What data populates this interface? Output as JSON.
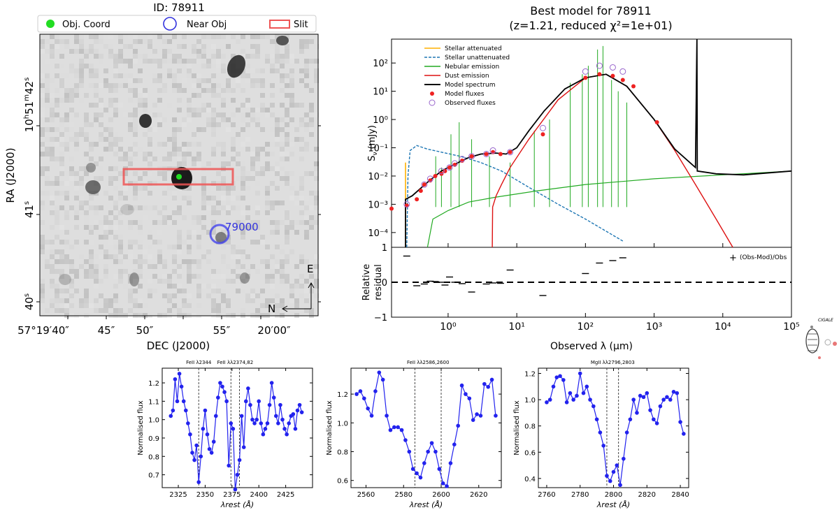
{
  "image_panel": {
    "id_label": "ID: 78911",
    "legend": [
      "Obj. Coord",
      "Near Obj",
      "Slit"
    ],
    "near_obj_label": "79000",
    "ra_ticks": [
      "42",
      "41",
      "40"
    ],
    "dec_ticks": [
      "57°19′40″",
      "45″",
      "50″",
      "55″",
      "20′00″"
    ],
    "xlabel": "DEC (J2000)",
    "ylabel": "RA (J2000)",
    "compass_e": "E",
    "compass_n": "N",
    "colors": {
      "obj": "#22dd22",
      "near": "#3333dd",
      "slit": "#ee5555"
    }
  },
  "sed_panel": {
    "title_line1": "Best model for 78911",
    "title_line2": "(z=1.21, reduced χ²=1e+01)",
    "ylabel": "S",
    "ylabel_sub": "ν",
    "ylabel_unit": " (mJy)",
    "xlabel": "Observed λ (μm)",
    "residual_label_1": "Relative",
    "residual_label_2": "residual",
    "residual_legend": "(Obs-Mod)/Obs",
    "legend": [
      {
        "label": "Stellar attenuated",
        "color": "#ffb000",
        "style": "solid"
      },
      {
        "label": "Stellar unattenuated",
        "color": "#1f77b4",
        "style": "dashed"
      },
      {
        "label": "Nebular emission",
        "color": "#22aa22",
        "style": "solid"
      },
      {
        "label": "Dust emission",
        "color": "#dd1111",
        "style": "solid"
      },
      {
        "label": "Model spectrum",
        "color": "#000000",
        "style": "solid"
      },
      {
        "label": "Model fluxes",
        "color": "#ee2222",
        "style": "dot"
      },
      {
        "label": "Observed fluxes",
        "color": "#9966cc",
        "style": "circle"
      }
    ],
    "x_ticks": [
      "10⁰",
      "10¹",
      "10²",
      "10³",
      "10⁴",
      "10⁵"
    ],
    "y_ticks": [
      "10²",
      "10¹",
      "10⁰",
      "10⁻¹",
      "10⁻²",
      "10⁻³",
      "10⁻⁴"
    ],
    "res_ticks": [
      "1",
      "0",
      "−1"
    ],
    "logo_text": "CIGALE"
  },
  "chart_data": [
    {
      "type": "scatter",
      "title": "Best model for 78911 (z=1.21, reduced χ²=1e+01)",
      "xlabel": "Observed λ (μm)",
      "ylabel": "Sν (mJy)",
      "xscale": "log",
      "yscale": "log",
      "xlim": [
        0.15,
        100000
      ],
      "ylim": [
        3e-05,
        700
      ],
      "series": [
        {
          "name": "Model fluxes",
          "x": [
            0.15,
            0.25,
            0.35,
            0.4,
            0.45,
            0.55,
            0.65,
            0.8,
            0.9,
            1.05,
            1.25,
            1.6,
            2.2,
            3.6,
            4.5,
            5.8,
            8.0,
            24,
            100,
            160,
            250,
            350,
            500,
            1100
          ],
          "y": [
            0.0007,
            0.0009,
            0.0015,
            0.003,
            0.005,
            0.007,
            0.01,
            0.012,
            0.015,
            0.02,
            0.025,
            0.035,
            0.05,
            0.06,
            0.07,
            0.06,
            0.07,
            0.3,
            30,
            40,
            35,
            25,
            15,
            0.8
          ]
        },
        {
          "name": "Observed fluxes",
          "x": [
            0.25,
            0.45,
            0.55,
            0.8,
            1.05,
            1.25,
            1.6,
            2.2,
            3.6,
            4.5,
            8.0,
            24,
            100,
            160,
            250,
            350
          ],
          "y": [
            0.001,
            0.005,
            0.008,
            0.015,
            0.02,
            0.028,
            0.04,
            0.05,
            0.06,
            0.08,
            0.07,
            0.5,
            50,
            80,
            70,
            50
          ]
        }
      ],
      "residual": {
        "ylabel": "Relative residual",
        "ylim": [
          -1,
          1
        ],
        "x": [
          0.25,
          0.35,
          0.45,
          0.55,
          0.65,
          0.8,
          0.9,
          1.05,
          1.25,
          1.6,
          2.2,
          3.6,
          4.5,
          5.8,
          8.0,
          24,
          100,
          160,
          250,
          350
        ],
        "y": [
          0.75,
          -0.1,
          -0.05,
          0.03,
          0.02,
          0.0,
          -0.08,
          0.15,
          0.0,
          -0.04,
          -0.28,
          -0.05,
          -0.02,
          -0.03,
          0.35,
          -0.38,
          0.25,
          0.55,
          0.62,
          0.7
        ]
      }
    },
    {
      "type": "line",
      "title": "FeII λ2344   FeII λλ2374,82",
      "xlabel": "λrest (Å)",
      "ylabel": "Normalised flux",
      "xlim": [
        2310,
        2450
      ],
      "ylim": [
        0.63,
        1.28
      ],
      "x_ticks": [
        2325,
        2350,
        2375,
        2400,
        2425
      ],
      "y_ticks": [
        0.7,
        0.8,
        0.9,
        1.0,
        1.1,
        1.2
      ],
      "markers": [
        2344,
        2374,
        2382
      ],
      "series": [
        {
          "x": [
            2318,
            2320,
            2322,
            2324,
            2326,
            2328,
            2330,
            2332,
            2334,
            2336,
            2338,
            2340,
            2342,
            2344,
            2346,
            2348,
            2350,
            2352,
            2354,
            2356,
            2358,
            2360,
            2362,
            2364,
            2366,
            2368,
            2370,
            2372,
            2374,
            2376,
            2378,
            2380,
            2382,
            2384,
            2386,
            2388,
            2390,
            2392,
            2394,
            2396,
            2398,
            2400,
            2402,
            2404,
            2406,
            2408,
            2410,
            2412,
            2414,
            2416,
            2418,
            2420,
            2422,
            2424,
            2426,
            2428,
            2430,
            2432,
            2434,
            2436,
            2438,
            2440
          ],
          "y": [
            1.02,
            1.05,
            1.22,
            1.1,
            1.25,
            1.18,
            1.1,
            1.05,
            0.98,
            0.92,
            0.82,
            0.78,
            0.86,
            0.66,
            0.8,
            0.95,
            1.05,
            0.92,
            0.84,
            0.82,
            0.88,
            1.02,
            1.12,
            1.2,
            1.18,
            1.15,
            1.1,
            0.75,
            0.98,
            0.95,
            0.62,
            0.7,
            0.78,
            1.02,
            0.85,
            1.1,
            1.17,
            1.08,
            1.0,
            0.98,
            1.0,
            1.1,
            0.98,
            0.92,
            0.95,
            0.98,
            1.08,
            1.2,
            1.12,
            1.02,
            0.98,
            1.08,
            1.0,
            0.95,
            0.92,
            0.98,
            1.02,
            1.03,
            0.95,
            1.05,
            1.08,
            1.04
          ]
        }
      ]
    },
    {
      "type": "line",
      "title": "FeII λλ2586,2600",
      "xlabel": "λrest (Å)",
      "ylabel": "Normalised flux",
      "xlim": [
        2552,
        2632
      ],
      "ylim": [
        0.55,
        1.38
      ],
      "x_ticks": [
        2560,
        2580,
        2600,
        2620
      ],
      "y_ticks": [
        0.6,
        0.8,
        1.0,
        1.2
      ],
      "markers": [
        2586,
        2600
      ],
      "series": [
        {
          "x": [
            2555,
            2557,
            2559,
            2561,
            2563,
            2565,
            2567,
            2569,
            2571,
            2573,
            2575,
            2577,
            2579,
            2581,
            2583,
            2585,
            2587,
            2589,
            2591,
            2593,
            2595,
            2597,
            2599,
            2601,
            2603,
            2605,
            2607,
            2609,
            2611,
            2613,
            2615,
            2617,
            2619,
            2621,
            2623,
            2625,
            2627,
            2629
          ],
          "y": [
            1.2,
            1.22,
            1.17,
            1.1,
            1.05,
            1.22,
            1.35,
            1.3,
            1.05,
            0.95,
            0.97,
            0.97,
            0.95,
            0.88,
            0.8,
            0.68,
            0.65,
            0.62,
            0.72,
            0.8,
            0.86,
            0.8,
            0.68,
            0.58,
            0.56,
            0.72,
            0.85,
            0.98,
            1.26,
            1.2,
            1.17,
            1.02,
            1.06,
            1.05,
            1.27,
            1.25,
            1.3,
            1.05
          ]
        }
      ]
    },
    {
      "type": "line",
      "title": "MgII λλ2796,2803",
      "xlabel": "λrest (Å)",
      "ylabel": "Normalised flux",
      "xlim": [
        2755,
        2845
      ],
      "ylim": [
        0.33,
        1.24
      ],
      "x_ticks": [
        2760,
        2780,
        2800,
        2820,
        2840
      ],
      "y_ticks": [
        0.4,
        0.6,
        0.8,
        1.0,
        1.2
      ],
      "markers": [
        2796,
        2803
      ],
      "series": [
        {
          "x": [
            2760,
            2762,
            2764,
            2766,
            2768,
            2770,
            2772,
            2774,
            2776,
            2778,
            2780,
            2782,
            2784,
            2786,
            2788,
            2790,
            2792,
            2794,
            2796,
            2798,
            2800,
            2802,
            2804,
            2806,
            2808,
            2810,
            2812,
            2814,
            2816,
            2818,
            2820,
            2822,
            2824,
            2826,
            2828,
            2830,
            2832,
            2834,
            2836,
            2838,
            2840,
            2842
          ],
          "y": [
            0.98,
            1.0,
            1.1,
            1.17,
            1.18,
            1.15,
            0.98,
            1.05,
            1.0,
            1.03,
            1.2,
            1.05,
            1.1,
            1.0,
            0.95,
            0.85,
            0.75,
            0.65,
            0.42,
            0.38,
            0.45,
            0.5,
            0.35,
            0.55,
            0.75,
            0.85,
            1.0,
            0.9,
            1.03,
            1.02,
            1.05,
            0.92,
            0.85,
            0.82,
            0.95,
            1.0,
            1.02,
            1.0,
            1.06,
            1.05,
            0.83,
            0.74
          ]
        }
      ]
    }
  ]
}
